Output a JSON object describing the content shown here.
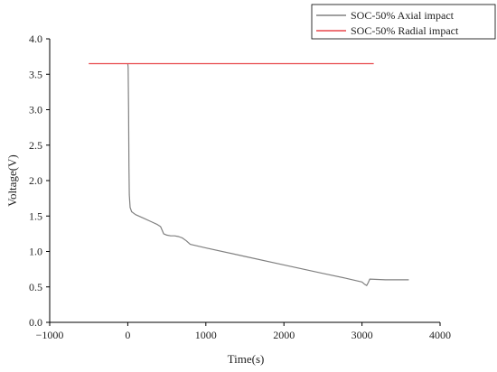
{
  "chart_data": {
    "type": "line",
    "title": "",
    "xlabel": "Time(s)",
    "ylabel": "Voltage(V)",
    "xlim": [
      -1000,
      4000
    ],
    "ylim": [
      0.0,
      4.0
    ],
    "x_ticks": [
      "−1000",
      "0",
      "1000",
      "2000",
      "3000",
      "4000"
    ],
    "y_ticks": [
      "0.0",
      "0.5",
      "1.0",
      "1.5",
      "2.0",
      "2.5",
      "3.0",
      "3.5",
      "4.0"
    ],
    "grid": false,
    "legend_position": "top-right",
    "series": [
      {
        "name": "SOC-50% Axial impact",
        "color": "#808080",
        "x": [
          0,
          5,
          10,
          15,
          20,
          30,
          50,
          100,
          200,
          300,
          380,
          420,
          440,
          460,
          500,
          550,
          600,
          650,
          700,
          750,
          800,
          1000,
          1500,
          2000,
          2500,
          2800,
          3000,
          3030,
          3060,
          3080,
          3100,
          3300,
          3600
        ],
        "y": [
          3.65,
          3.6,
          3.0,
          2.2,
          1.8,
          1.62,
          1.56,
          1.52,
          1.47,
          1.42,
          1.38,
          1.35,
          1.3,
          1.25,
          1.23,
          1.22,
          1.22,
          1.21,
          1.19,
          1.15,
          1.1,
          1.05,
          0.93,
          0.81,
          0.69,
          0.62,
          0.57,
          0.54,
          0.52,
          0.56,
          0.61,
          0.6,
          0.6
        ]
      },
      {
        "name": "SOC-50% Radial impact",
        "color": "#e8474b",
        "x": [
          -500,
          3150
        ],
        "y": [
          3.65,
          3.65
        ]
      }
    ]
  }
}
